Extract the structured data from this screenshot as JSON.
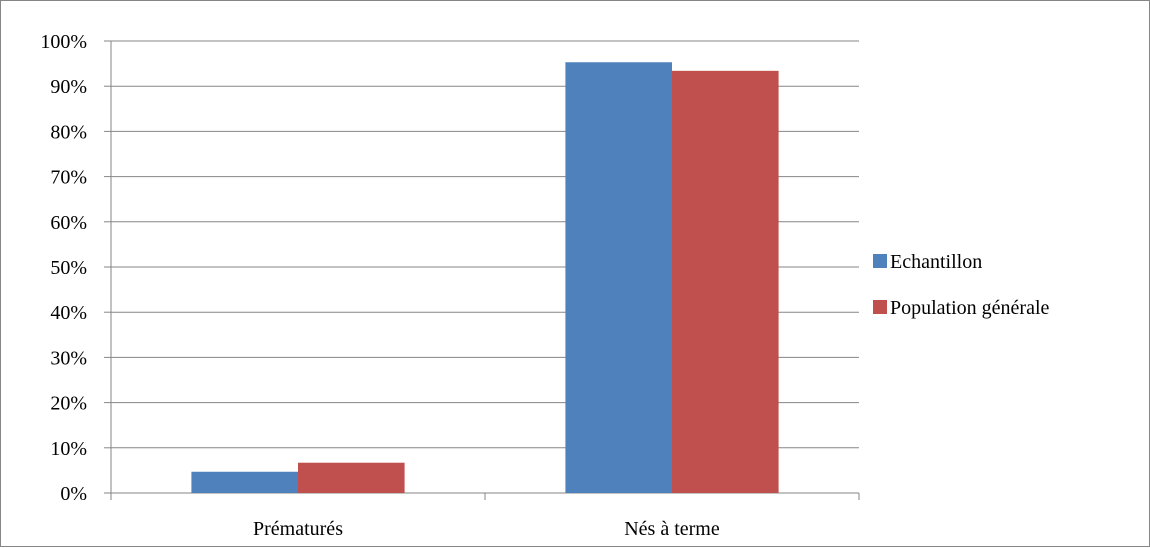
{
  "chart_data": {
    "type": "bar",
    "categories": [
      "Prématurés",
      "Nés à terme"
    ],
    "series": [
      {
        "name": "Echantillon",
        "values": [
          4.7,
          95.3
        ],
        "color": "#4F81BD"
      },
      {
        "name": "Population générale",
        "values": [
          6.7,
          93.4
        ],
        "color": "#C0504D"
      }
    ],
    "ylim": [
      0,
      100
    ],
    "yticks": [
      0,
      10,
      20,
      30,
      40,
      50,
      60,
      70,
      80,
      90,
      100
    ],
    "ytick_labels": [
      "0%",
      "10%",
      "20%",
      "30%",
      "40%",
      "50%",
      "60%",
      "70%",
      "80%",
      "90%",
      "100%"
    ],
    "grid": true,
    "legend": "right",
    "gridline_color": "#868686"
  }
}
